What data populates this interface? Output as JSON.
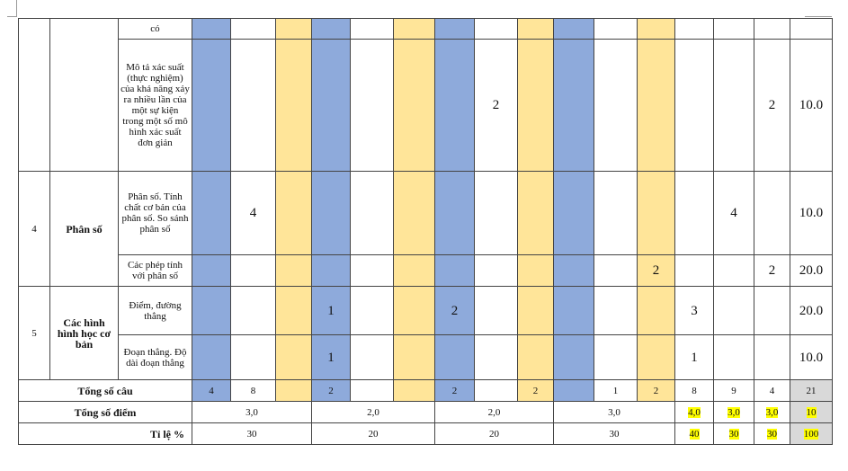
{
  "groups": [
    {
      "rows": [
        {
          "content": "có",
          "cells": [
            null,
            null,
            null,
            null,
            null,
            null,
            null,
            null,
            null,
            null,
            null,
            null,
            null,
            null,
            null,
            null
          ]
        },
        {
          "content": "Mô tả xác suất (thực nghiệm) của khả năng xảy ra nhiều lần của một sự kiện trong một số mô hình xác suất đơn giản",
          "cells": [
            null,
            null,
            null,
            null,
            null,
            null,
            null,
            2,
            null,
            null,
            null,
            null,
            null,
            null,
            2,
            "10.0"
          ]
        }
      ]
    },
    {
      "stt": 4,
      "topic": "Phân số",
      "rows": [
        {
          "content": "Phân số. Tính chất cơ bản của phân số. So sánh phân số",
          "cells": [
            null,
            4,
            null,
            null,
            null,
            null,
            null,
            null,
            null,
            null,
            null,
            null,
            null,
            4,
            null,
            "10.0"
          ]
        },
        {
          "content": "Các phép tính với phân số",
          "cells": [
            null,
            null,
            null,
            null,
            null,
            null,
            null,
            null,
            null,
            null,
            null,
            2,
            null,
            null,
            2,
            "20.0"
          ]
        }
      ]
    },
    {
      "stt": 5,
      "topic": "Các hình hình học cơ bản",
      "rows": [
        {
          "content": "Điểm, đường thẳng",
          "cells": [
            null,
            null,
            null,
            1,
            null,
            null,
            2,
            null,
            null,
            null,
            null,
            null,
            3,
            null,
            null,
            "20.0"
          ]
        },
        {
          "content": "Đoạn thẳng. Độ dài đoạn thẳng",
          "cells": [
            null,
            null,
            null,
            1,
            null,
            null,
            null,
            null,
            null,
            null,
            null,
            null,
            1,
            null,
            null,
            "10.0"
          ]
        }
      ]
    }
  ],
  "totals": {
    "label": "Tổng số câu",
    "cells": [
      4,
      8,
      null,
      2,
      null,
      null,
      2,
      null,
      2,
      null,
      1,
      2,
      8,
      9,
      4,
      21
    ]
  },
  "points": {
    "label": "Tổng số điểm",
    "cells": [
      "3,0",
      "2,0",
      "2,0",
      "3,0",
      "4,0",
      "3,0",
      "3,0",
      10
    ]
  },
  "percent": {
    "label": "Tỉ lệ %",
    "cells": [
      30,
      20,
      20,
      30,
      40,
      30,
      30,
      100
    ]
  }
}
